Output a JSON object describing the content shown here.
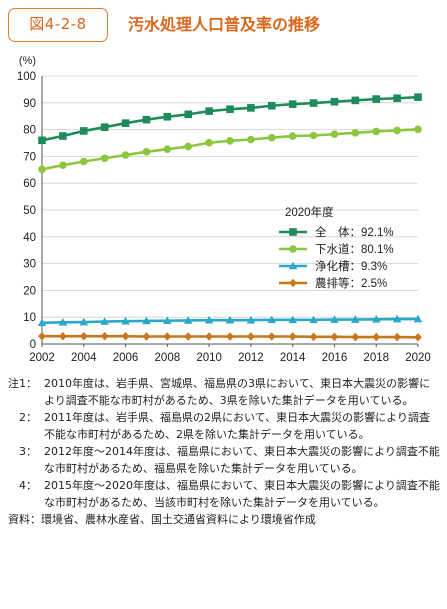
{
  "header": {
    "figure_number": "図4-2-8",
    "title": "汚水処理人口普及率の推移"
  },
  "chart_data": {
    "type": "line",
    "title": "汚水処理人口普及率の推移",
    "xlabel": "",
    "ylabel": "(%)",
    "ylim": [
      0,
      100
    ],
    "yticks": [
      0,
      10,
      20,
      30,
      40,
      50,
      60,
      70,
      80,
      90,
      100
    ],
    "xlim": [
      2002,
      2020
    ],
    "xticks": [
      2002,
      2004,
      2006,
      2008,
      2010,
      2012,
      2014,
      2016,
      2018,
      2020
    ],
    "grid": "horizontal",
    "legend_title": "2020年度",
    "legend_position": "right-middle",
    "x": [
      2002,
      2003,
      2004,
      2005,
      2006,
      2007,
      2008,
      2009,
      2010,
      2011,
      2012,
      2013,
      2014,
      2015,
      2016,
      2017,
      2018,
      2019,
      2020
    ],
    "series": [
      {
        "name": "全　体：92.1%",
        "color": "#1f8a5b",
        "marker": "square",
        "values": [
          76.0,
          77.6,
          79.5,
          80.9,
          82.4,
          83.7,
          84.8,
          85.7,
          86.9,
          87.6,
          88.1,
          88.9,
          89.5,
          89.9,
          90.4,
          90.9,
          91.4,
          91.7,
          92.1
        ]
      },
      {
        "name": "下水道：80.1%",
        "color": "#8cc63f",
        "marker": "circle",
        "values": [
          65.2,
          66.7,
          68.1,
          69.3,
          70.5,
          71.7,
          72.7,
          73.7,
          75.1,
          75.8,
          76.3,
          77.0,
          77.6,
          77.8,
          78.3,
          78.8,
          79.3,
          79.7,
          80.1
        ]
      },
      {
        "name": "浄化槽：9.3%",
        "color": "#2aa9c6",
        "marker": "triangle",
        "values": [
          7.9,
          8.1,
          8.2,
          8.4,
          8.5,
          8.6,
          8.7,
          8.8,
          8.9,
          8.9,
          8.9,
          9.0,
          9.0,
          9.0,
          9.1,
          9.1,
          9.2,
          9.3,
          9.3
        ]
      },
      {
        "name": "農排等：2.5%",
        "color": "#c8761b",
        "marker": "diamond",
        "values": [
          2.9,
          2.9,
          2.9,
          2.9,
          2.9,
          2.8,
          2.8,
          2.8,
          2.8,
          2.8,
          2.8,
          2.8,
          2.8,
          2.7,
          2.7,
          2.6,
          2.6,
          2.6,
          2.5
        ]
      }
    ]
  },
  "notes": [
    {
      "label": "注1：",
      "text": "2010年度は、岩手県、宮城県、福島県の3県において、東日本大震災の影響により調査不能な市町村があるため、3県を除いた集計データを用いている。"
    },
    {
      "label": "　2：",
      "text": "2011年度は、岩手県、福島県の2県において、東日本大震災の影響により調査不能な市町村があるため、2県を除いた集計データを用いている。"
    },
    {
      "label": "　3：",
      "text": "2012年度～2014年度は、福島県において、東日本大震災の影響により調査不能な市町村があるため、福島県を除いた集計データを用いている。"
    },
    {
      "label": "　4：",
      "text": "2015年度～2020年度は、福島県において、東日本大震災の影響により調査不能な市町村があるため、当該市町村を除いた集計データを用いている。"
    }
  ],
  "source": "資料：環境省、農林水産省、国土交通省資料により環境省作成"
}
